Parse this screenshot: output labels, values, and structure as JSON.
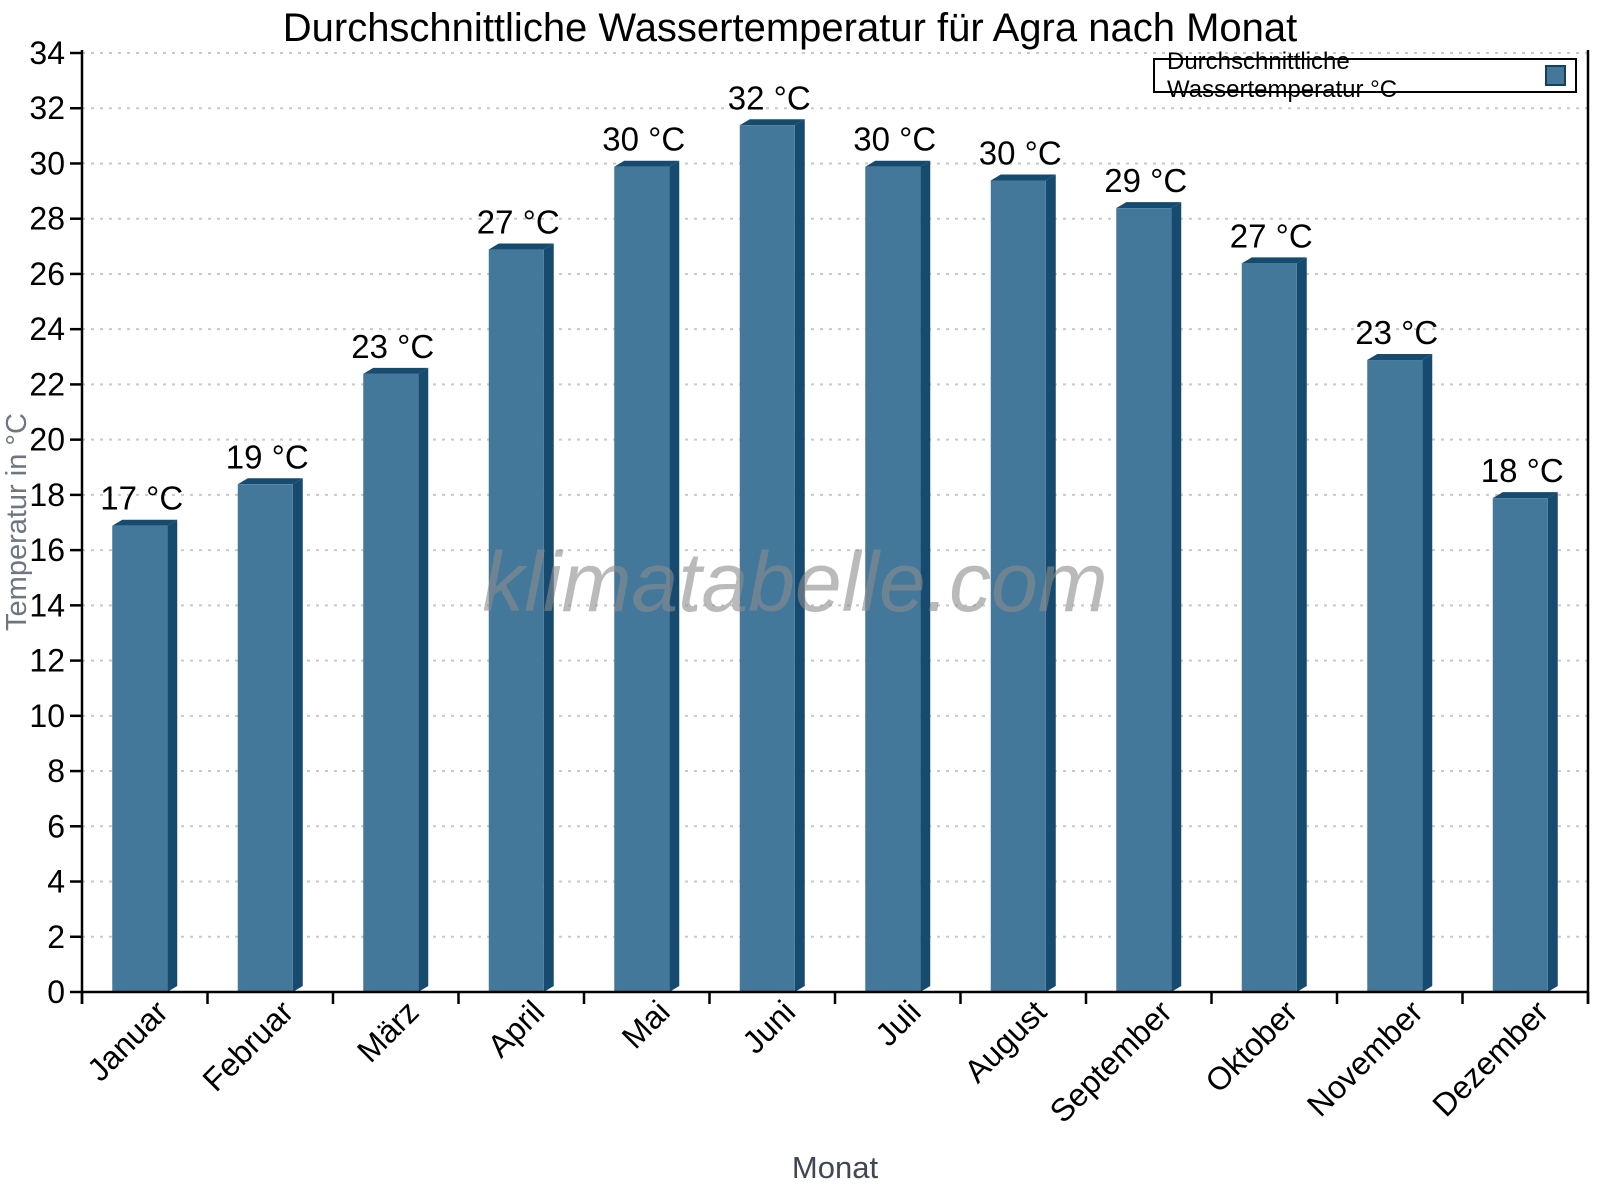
{
  "title": "Durchschnittliche Wassertemperatur für Agra nach Monat",
  "legend": {
    "label": "Durchschnittliche Wassertemperatur °C"
  },
  "watermark": "klimatabelle.com",
  "chart_data": {
    "type": "bar",
    "title": "Durchschnittliche Wassertemperatur für Agra nach Monat",
    "series_name": "Durchschnittliche Wassertemperatur °C",
    "categories": [
      "Januar",
      "Februar",
      "März",
      "April",
      "Mai",
      "Juni",
      "Juli",
      "August",
      "September",
      "Oktober",
      "November",
      "Dezember"
    ],
    "values": [
      17.1,
      18.6,
      22.6,
      27.1,
      30.1,
      31.6,
      30.1,
      29.6,
      28.6,
      26.6,
      23.1,
      18.1
    ],
    "data_labels": [
      "17 °C",
      "19 °C",
      "23 °C",
      "27 °C",
      "30 °C",
      "32 °C",
      "30 °C",
      "30 °C",
      "29 °C",
      "27 °C",
      "23 °C",
      "18 °C"
    ],
    "xlabel": "Monat",
    "ylabel": "Temperatur in °C",
    "ylim": [
      0,
      34
    ],
    "ytick_step": 2,
    "grid": "horizontal-dotted",
    "legend_position": "top-right",
    "watermark": "klimatabelle.com",
    "colors": {
      "bar_fill": "#44789B",
      "bar_edge": "#164A6E",
      "gridline": "#C9C9C9",
      "axis_line": "#000000",
      "tick_label": "#000000",
      "data_label": "#000000",
      "xlabel_color": "#3F4752",
      "ylabel_color": "#6E7682",
      "watermark_color": "#8C8C8C"
    }
  }
}
